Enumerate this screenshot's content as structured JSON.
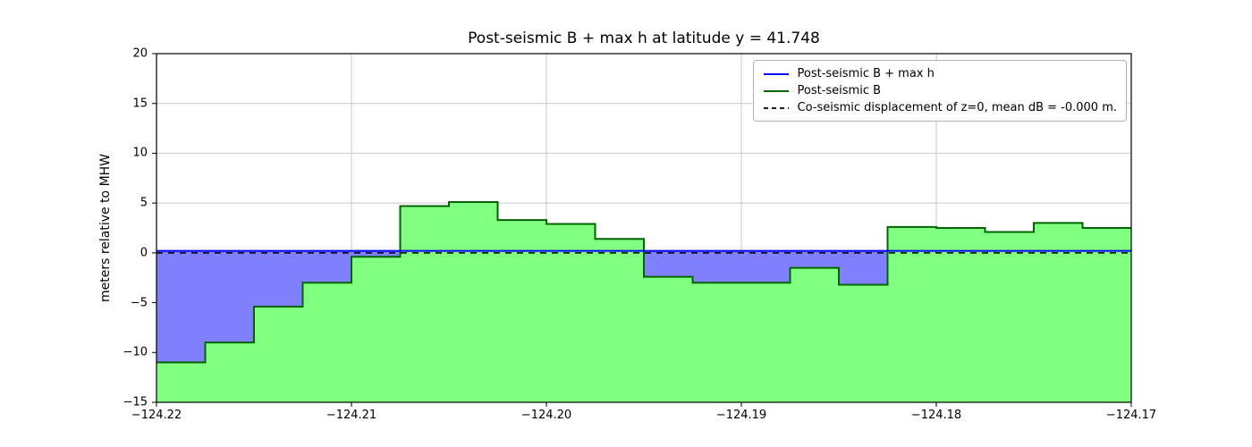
{
  "chart_data": {
    "type": "area",
    "title": "Post-seismic B + max h at latitude y = 41.748",
    "ylabel": "meters relative to MHW",
    "xlabel": "",
    "xlim": [
      -124.22,
      -124.17
    ],
    "ylim": [
      -15,
      20
    ],
    "xticks": [
      -124.22,
      -124.21,
      -124.2,
      -124.19,
      -124.18,
      -124.17
    ],
    "xtick_labels": [
      "−124.22",
      "−124.21",
      "−124.20",
      "−124.19",
      "−124.18",
      "−124.17"
    ],
    "yticks": [
      -15,
      -10,
      -5,
      0,
      5,
      10,
      15,
      20
    ],
    "ytick_labels": [
      "−15",
      "−10",
      "−5",
      "0",
      "5",
      "10",
      "15",
      "20"
    ],
    "grid": true,
    "legend_position": "upper right",
    "b_plus_maxh_value": 0.2,
    "zero_line_value": 0.0,
    "step_edges_x": [
      -124.22,
      -124.2175,
      -124.215,
      -124.2125,
      -124.21,
      -124.2075,
      -124.205,
      -124.2025,
      -124.2,
      -124.1975,
      -124.195,
      -124.1925,
      -124.19,
      -124.1875,
      -124.185,
      -124.1825,
      -124.18,
      -124.1775,
      -124.175,
      -124.1725,
      -124.17
    ],
    "step_values_B": [
      -11.0,
      -9.0,
      -5.4,
      -3.0,
      -0.4,
      4.7,
      5.1,
      3.3,
      2.9,
      1.4,
      -2.4,
      -3.0,
      -3.0,
      -1.5,
      -3.2,
      2.6,
      2.5,
      2.1,
      3.0,
      2.5
    ],
    "legend": [
      {
        "label": "Post-seismic B + max h",
        "color": "#0000ff",
        "dash": false
      },
      {
        "label": "Post-seismic B",
        "color": "#006400",
        "dash": false
      },
      {
        "label": "Co-seismic displacement of z=0, mean dB = -0.000 m.",
        "color": "#000000",
        "dash": true
      }
    ],
    "colors": {
      "fill_green": "#80ff80",
      "fill_blue": "#8080ff",
      "line_green": "#006400",
      "line_blue": "#0000ff",
      "zero_dashed": "#000000",
      "grid": "#c8c8c8",
      "frame": "#000000",
      "background": "#ffffff"
    }
  }
}
